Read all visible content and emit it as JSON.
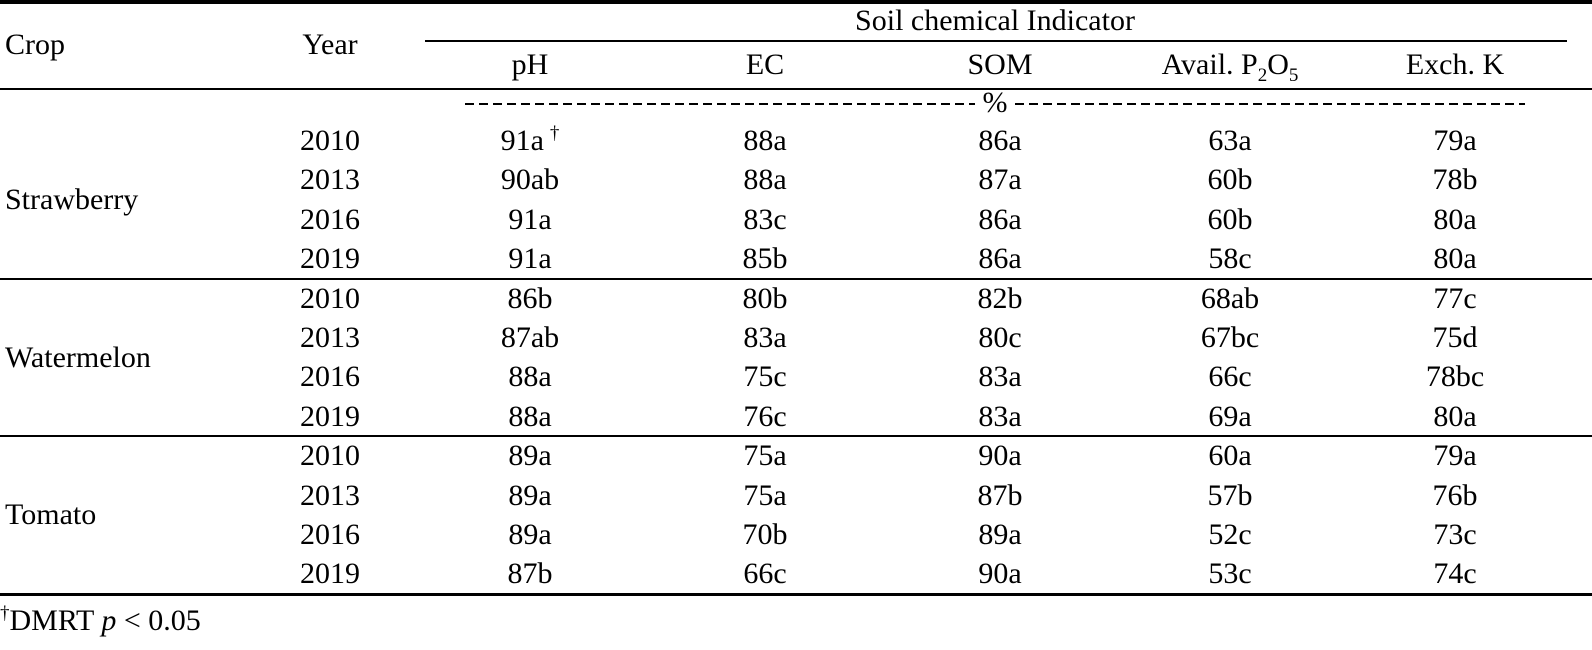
{
  "header": {
    "crop": "Crop",
    "year": "Year",
    "group_title": "Soil chemical Indicator",
    "columns": [
      "pH",
      "EC",
      "SOM",
      {
        "main": "Avail. P",
        "sub1": "2",
        "mid": "O",
        "sub2": "5"
      },
      "Exch. K"
    ],
    "unit": "%"
  },
  "table": {
    "groups": [
      {
        "crop": "Strawberry",
        "rows": [
          {
            "year": "2010",
            "cells": [
              "91a",
              "88a",
              "86a",
              "63a",
              "79a"
            ],
            "marker": "†"
          },
          {
            "year": "2013",
            "cells": [
              "90ab",
              "88a",
              "87a",
              "60b",
              "78b"
            ]
          },
          {
            "year": "2016",
            "cells": [
              "91a",
              "83c",
              "86a",
              "60b",
              "80a"
            ]
          },
          {
            "year": "2019",
            "cells": [
              "91a",
              "85b",
              "86a",
              "58c",
              "80a"
            ]
          }
        ]
      },
      {
        "crop": "Watermelon",
        "rows": [
          {
            "year": "2010",
            "cells": [
              "86b",
              "80b",
              "82b",
              "68ab",
              "77c"
            ]
          },
          {
            "year": "2013",
            "cells": [
              "87ab",
              "83a",
              "80c",
              "67bc",
              "75d"
            ]
          },
          {
            "year": "2016",
            "cells": [
              "88a",
              "75c",
              "83a",
              "66c",
              "78bc"
            ]
          },
          {
            "year": "2019",
            "cells": [
              "88a",
              "76c",
              "83a",
              "69a",
              "80a"
            ]
          }
        ]
      },
      {
        "crop": "Tomato",
        "rows": [
          {
            "year": "2010",
            "cells": [
              "89a",
              "75a",
              "90a",
              "60a",
              "79a"
            ]
          },
          {
            "year": "2013",
            "cells": [
              "89a",
              "75a",
              "87b",
              "57b",
              "76b"
            ]
          },
          {
            "year": "2016",
            "cells": [
              "89a",
              "70b",
              "89a",
              "52c",
              "73c"
            ]
          },
          {
            "year": "2019",
            "cells": [
              "87b",
              "66c",
              "90a",
              "53c",
              "74c"
            ]
          }
        ]
      }
    ]
  },
  "footnote": {
    "marker": "†",
    "text": "DMRT",
    "italic": "p",
    "rest": "< 0.05"
  }
}
